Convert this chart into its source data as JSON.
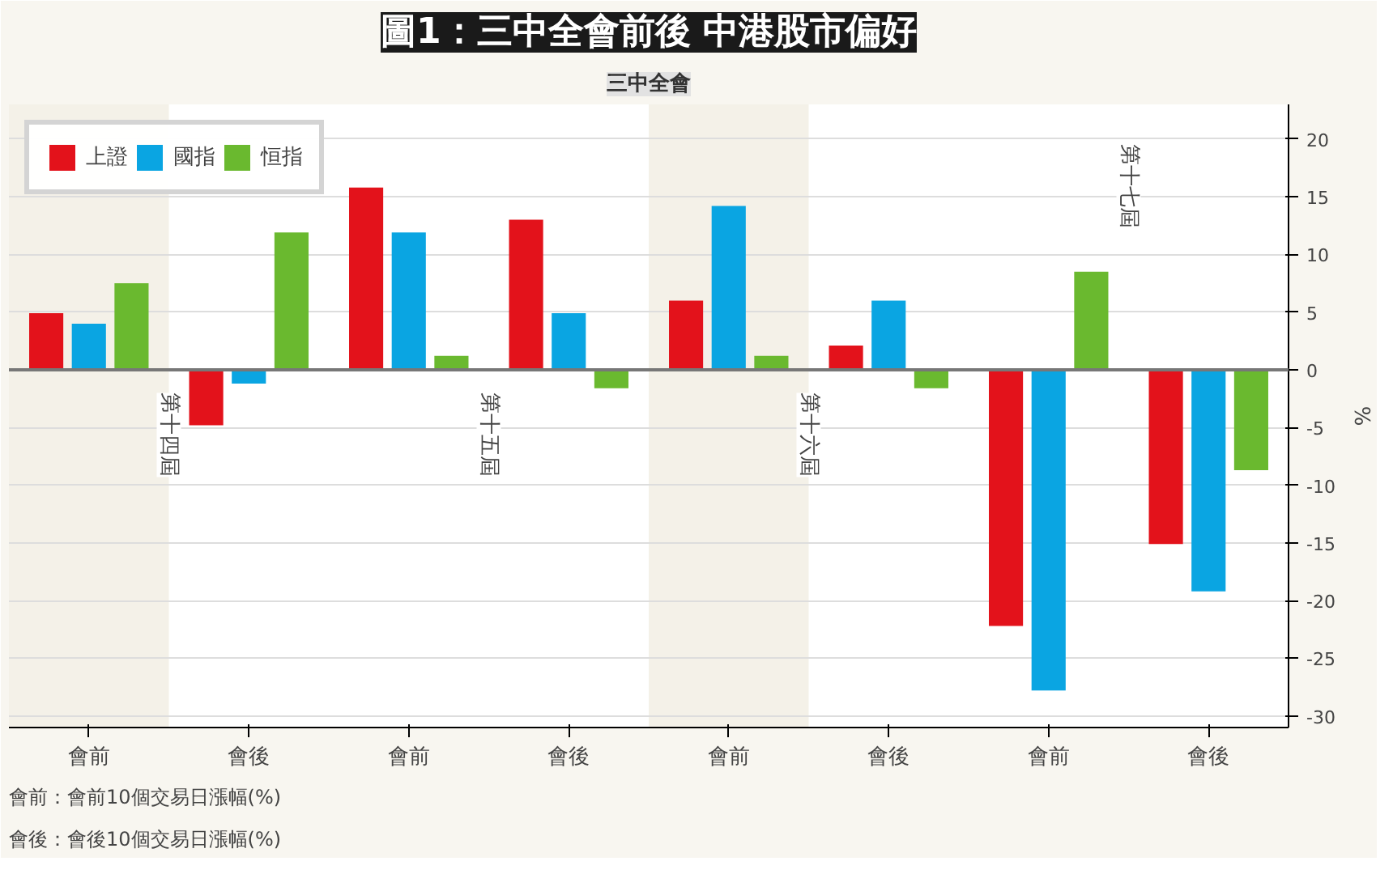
{
  "chart_data": {
    "type": "bar",
    "title": "圖1：三中全會前後 中港股市偏好",
    "subtitle": "三中全會",
    "ylabel": "%",
    "categories": [
      "會前",
      "會後",
      "會前",
      "會後",
      "會前",
      "會後",
      "會前",
      "會後"
    ],
    "series": [
      {
        "name": "上證",
        "color": "#e3121b",
        "values": [
          4.9,
          -4.8,
          15.8,
          13.0,
          6.0,
          2.1,
          -22.2,
          -15.1
        ]
      },
      {
        "name": "國指",
        "color": "#0aa5e2",
        "values": [
          4.0,
          -1.2,
          11.9,
          4.9,
          14.2,
          6.0,
          -27.8,
          -19.2
        ]
      },
      {
        "name": "恒指",
        "color": "#6ab92f",
        "values": [
          7.5,
          11.9,
          1.2,
          -1.6,
          1.2,
          -1.6,
          8.5,
          -8.7
        ]
      }
    ],
    "ylim": [
      -31,
      23
    ],
    "yticks": [
      -30,
      -25,
      -20,
      -15,
      -10,
      -5,
      0,
      5,
      10,
      15,
      20
    ],
    "grid": "y",
    "legend": "top left",
    "annotations": [
      "第十四屆",
      "第十五屆",
      "第十六屆",
      "第十七屆",
      "會前：會前10個交易日漲幅(%)",
      "會後：會後10個交易日漲幅(%)"
    ]
  }
}
